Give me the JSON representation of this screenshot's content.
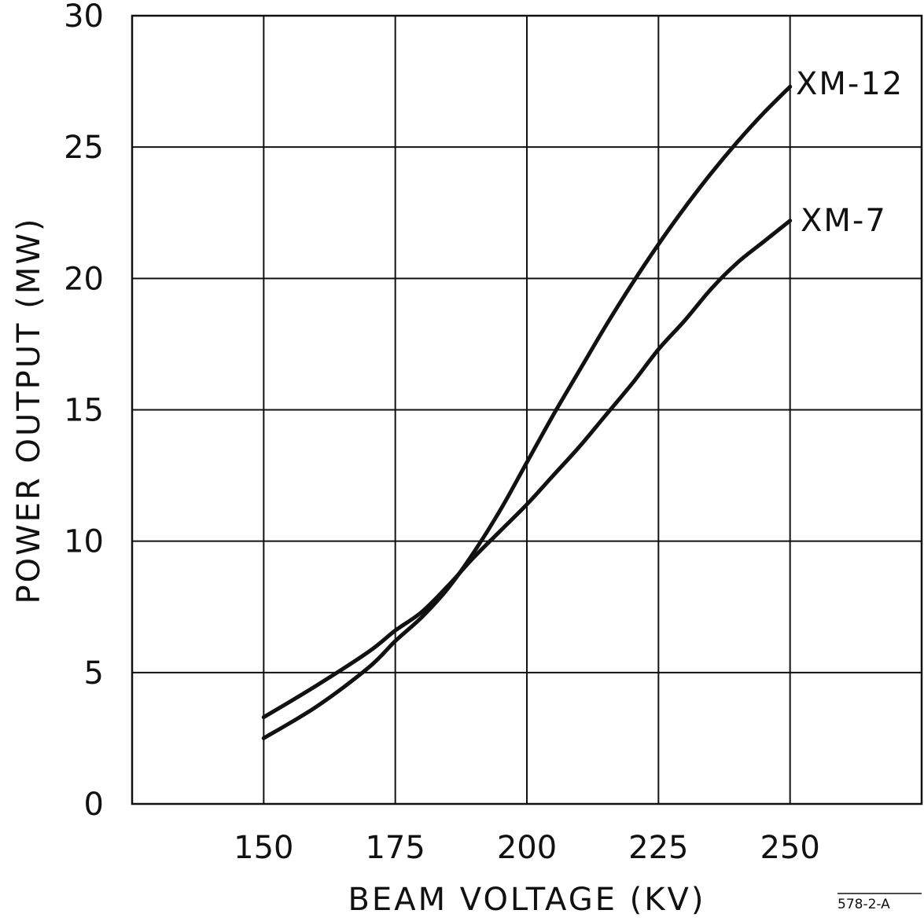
{
  "chart_data": {
    "type": "line",
    "xlabel": "BEAM VOLTAGE (KV)",
    "ylabel": "POWER OUTPUT (MW)",
    "xlim": [
      125,
      275
    ],
    "ylim": [
      0,
      30
    ],
    "x_ticks": [
      "150",
      "175",
      "200",
      "225",
      "250"
    ],
    "y_ticks": [
      "0",
      "5",
      "10",
      "15",
      "20",
      "25",
      "30"
    ],
    "grid": true,
    "legend": "none",
    "series": [
      {
        "name": "XM-12",
        "x": [
          150,
          160,
          170,
          175,
          180,
          185,
          190,
          195,
          200,
          205,
          210,
          215,
          220,
          225,
          230,
          235,
          240,
          245,
          250
        ],
        "y": [
          2.5,
          3.7,
          5.2,
          6.2,
          7.1,
          8.2,
          9.6,
          11.2,
          13.0,
          14.8,
          16.5,
          18.2,
          19.8,
          21.3,
          22.7,
          24.0,
          25.2,
          26.3,
          27.3
        ]
      },
      {
        "name": "XM-7",
        "x": [
          150,
          160,
          170,
          175,
          180,
          185,
          190,
          195,
          200,
          205,
          210,
          215,
          220,
          225,
          230,
          235,
          240,
          245,
          250
        ],
        "y": [
          3.3,
          4.5,
          5.8,
          6.6,
          7.3,
          8.3,
          9.4,
          10.4,
          11.4,
          12.5,
          13.6,
          14.8,
          16.0,
          17.3,
          18.4,
          19.6,
          20.6,
          21.4,
          22.2
        ]
      }
    ],
    "reference": "578-2-A"
  }
}
